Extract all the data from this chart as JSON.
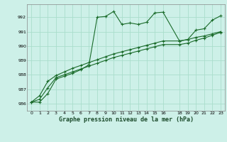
{
  "xlabel": "Graphe pression niveau de la mer (hPa)",
  "bg_color": "#cdf0e8",
  "grid_color": "#aaddcc",
  "line_color": "#1a6b2a",
  "ylim": [
    985.5,
    992.9
  ],
  "yticks": [
    986,
    987,
    988,
    989,
    990,
    991,
    992
  ],
  "xlim": [
    -0.5,
    23.5
  ],
  "xticks": [
    0,
    1,
    2,
    3,
    4,
    5,
    6,
    7,
    8,
    9,
    10,
    11,
    12,
    13,
    14,
    15,
    16,
    18,
    19,
    20,
    21,
    22,
    23
  ],
  "series1_x": [
    0,
    1,
    2,
    3,
    4,
    5,
    6,
    7,
    8,
    9,
    10,
    11,
    12,
    13,
    14,
    15,
    16,
    18,
    19,
    20,
    21,
    22,
    23
  ],
  "series1_y": [
    986.1,
    986.1,
    986.7,
    987.7,
    987.9,
    988.1,
    988.35,
    988.7,
    992.0,
    992.05,
    992.4,
    991.5,
    991.6,
    991.5,
    991.65,
    992.3,
    992.35,
    990.35,
    990.45,
    991.1,
    991.2,
    991.8,
    992.1
  ],
  "series2_x": [
    0,
    1,
    2,
    3,
    4,
    5,
    6,
    7,
    8,
    9,
    10,
    11,
    12,
    13,
    14,
    15,
    16,
    18,
    19,
    20,
    21,
    22,
    23
  ],
  "series2_y": [
    986.1,
    986.55,
    987.55,
    987.95,
    988.2,
    988.45,
    988.65,
    988.85,
    989.05,
    989.25,
    989.45,
    989.6,
    989.75,
    989.9,
    990.05,
    990.2,
    990.35,
    990.35,
    990.45,
    990.6,
    990.7,
    990.85,
    991.0
  ],
  "series3_x": [
    0,
    1,
    2,
    3,
    4,
    5,
    6,
    7,
    8,
    9,
    10,
    11,
    12,
    13,
    14,
    15,
    16,
    18,
    19,
    20,
    21,
    22,
    23
  ],
  "series3_y": [
    986.1,
    986.3,
    987.1,
    987.8,
    988.0,
    988.2,
    988.4,
    988.6,
    988.8,
    989.0,
    989.2,
    989.35,
    989.5,
    989.65,
    989.8,
    989.95,
    990.1,
    990.1,
    990.2,
    990.4,
    990.55,
    990.75,
    990.95
  ]
}
